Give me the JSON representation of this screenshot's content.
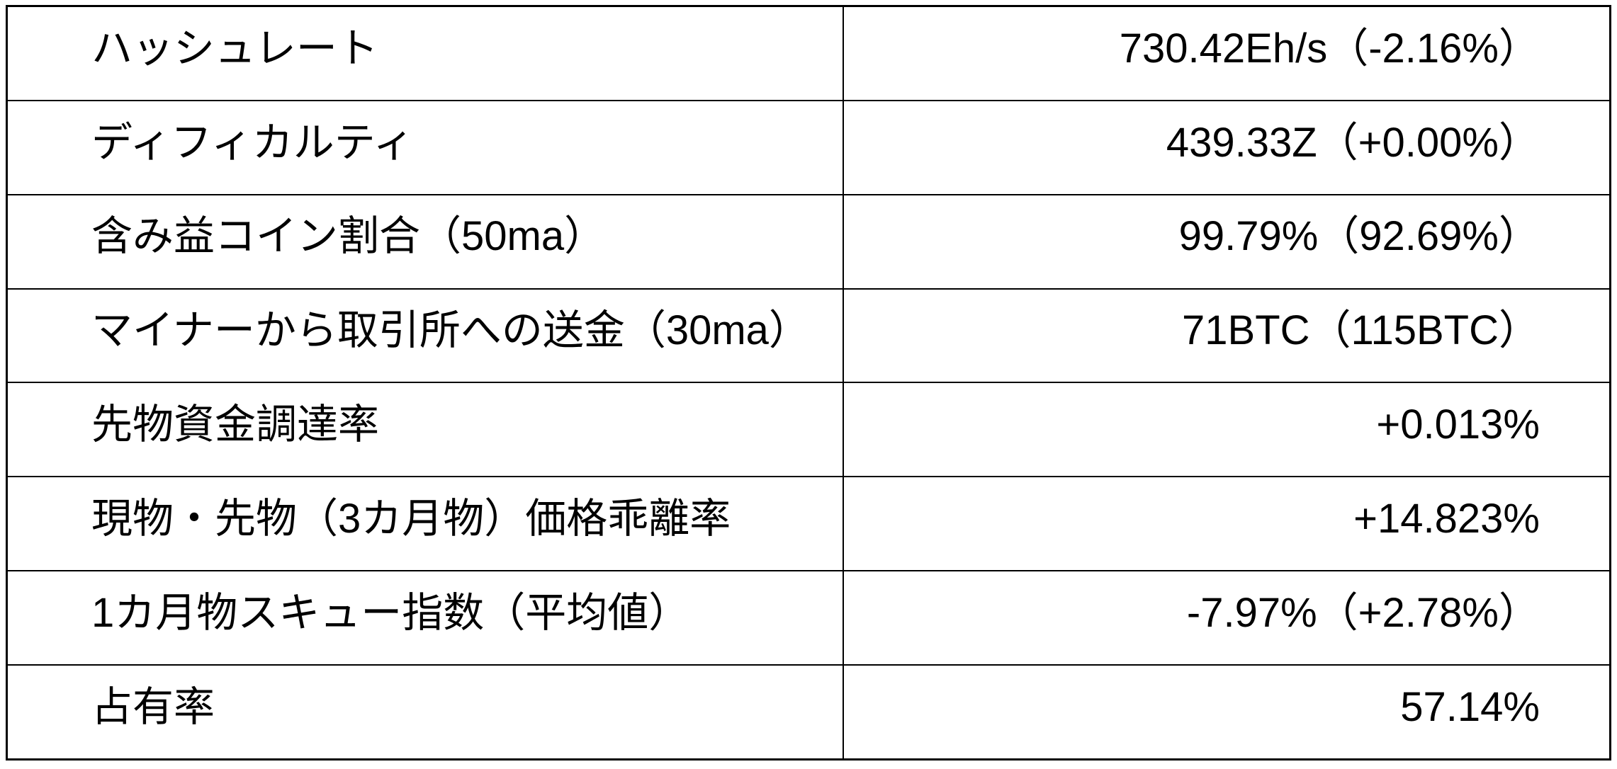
{
  "chart_data": {
    "type": "table",
    "rows": [
      [
        "ハッシュレート",
        "730.42Eh/s（-2.16%）"
      ],
      [
        "ディフィカルティ",
        "439.33Z（+0.00%）"
      ],
      [
        "含み益コイン割合（50ma）",
        "99.79%（92.69%）"
      ],
      [
        "マイナーから取引所への送金（30ma）",
        "71BTC（115BTC）"
      ],
      [
        "先物資金調達率",
        "+0.013%"
      ],
      [
        "現物・先物（3カ月物）価格乖離率",
        "+14.823%"
      ],
      [
        "1カ月物スキュー指数（平均値）",
        "-7.97%（+2.78%）"
      ],
      [
        "占有率",
        "57.14%"
      ]
    ],
    "layout": {
      "columns": 2,
      "label_column_align": "left",
      "value_column_align": "right",
      "grid": "on",
      "header_row": false
    }
  },
  "colors": {
    "background": "#ffffff",
    "border": "#000000",
    "text": "#000000"
  }
}
